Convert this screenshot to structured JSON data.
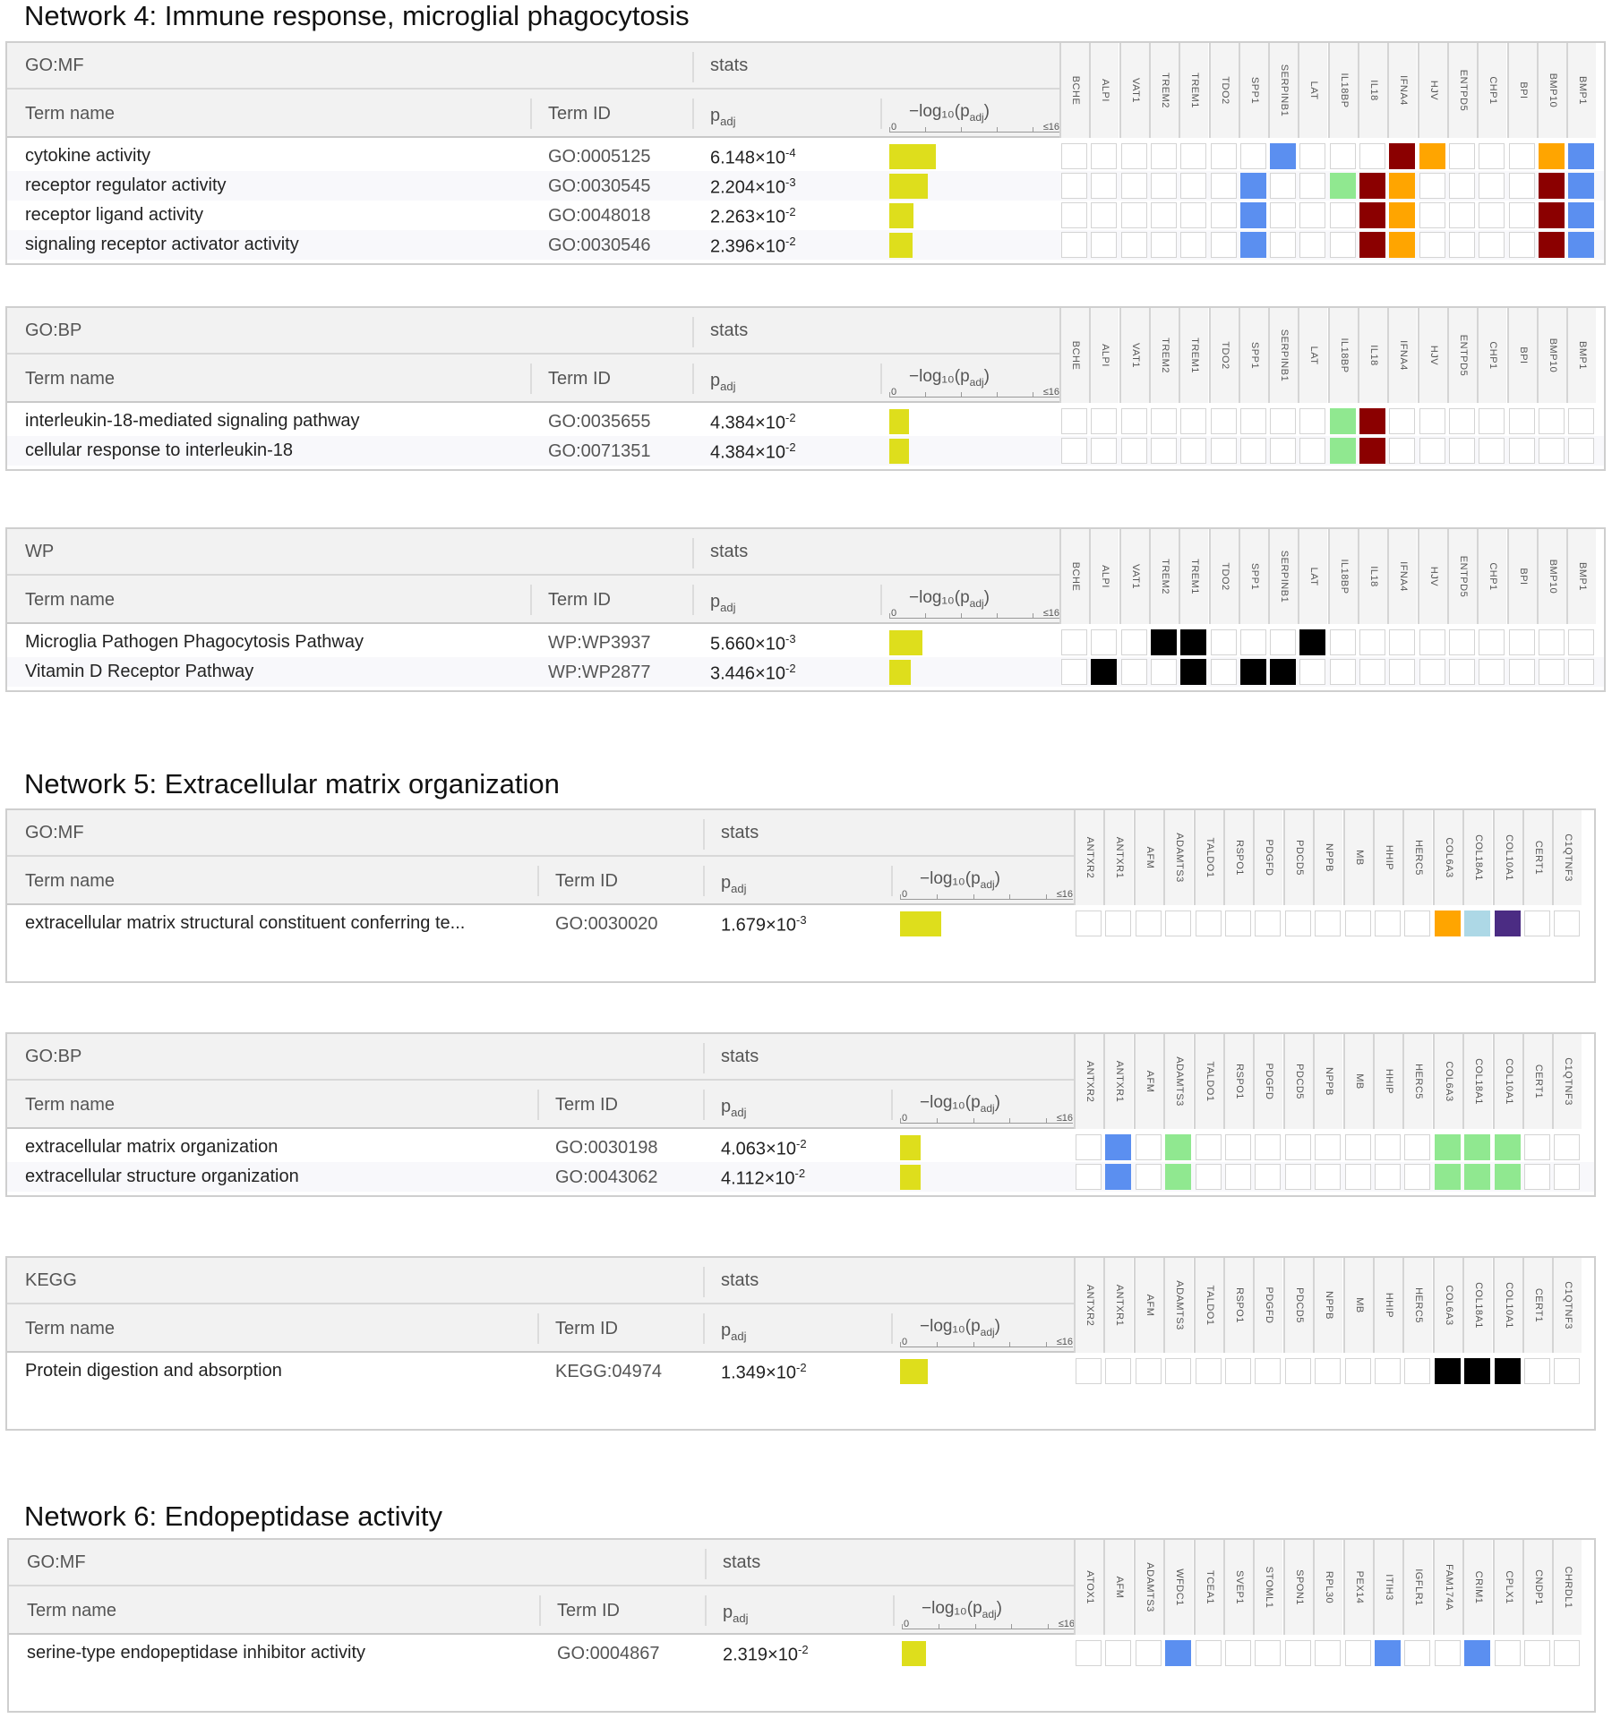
{
  "colors": {
    "pbar": "#dede1c",
    "palette": {
      "B": "#5b8ff0",
      "G": "#90e890",
      "R": "#8b0000",
      "O": "#ffa500",
      "K": "#000000",
      "L": "#add8e6",
      "P": "#4b2c83"
    }
  },
  "axis_label": "−log₁₀(p",
  "axis_sub": "adj",
  "axis_close": ")",
  "axis_zero": "0",
  "axis_max": "≤16",
  "col_term_name": "Term name",
  "col_term_id": "Term ID",
  "col_padj": "p",
  "col_padj_sub": "adj",
  "stats_label": "stats",
  "networks": [
    {
      "title": "Network 4: Immune response, microglial phagocytosis",
      "genes": [
        "BCHE",
        "ALPI",
        "VAT1",
        "TREM2",
        "TREM1",
        "TDO2",
        "SPP1",
        "SERPINB1",
        "LAT",
        "IL18BP",
        "IL18",
        "IFNA4",
        "HJV",
        "ENTPD5",
        "CHP1",
        "BPI",
        "BMP10",
        "BMP1"
      ],
      "panels": [
        {
          "source": "GO:MF",
          "rows": [
            {
              "name": "cytokine activity",
              "id": "GO:0005125",
              "p_base": "6.148×10",
              "p_exp": "-4",
              "neglog": 3.21,
              "cells": ".......B...RO...OB"
            },
            {
              "name": "receptor regulator activity",
              "id": "GO:0030545",
              "p_base": "2.204×10",
              "p_exp": "-3",
              "neglog": 2.66,
              "cells": "......B..GRO....RB"
            },
            {
              "name": "receptor ligand activity",
              "id": "GO:0048018",
              "p_base": "2.263×10",
              "p_exp": "-2",
              "neglog": 1.65,
              "cells": "......B...RO....RB"
            },
            {
              "name": "signaling receptor activator activity",
              "id": "GO:0030546",
              "p_base": "2.396×10",
              "p_exp": "-2",
              "neglog": 1.62,
              "cells": "......B...RO....RB"
            }
          ]
        },
        {
          "source": "GO:BP",
          "rows": [
            {
              "name": "interleukin-18-mediated signaling pathway",
              "id": "GO:0035655",
              "p_base": "4.384×10",
              "p_exp": "-2",
              "neglog": 1.36,
              "cells": ".........GR......."
            },
            {
              "name": "cellular response to interleukin-18",
              "id": "GO:0071351",
              "p_base": "4.384×10",
              "p_exp": "-2",
              "neglog": 1.36,
              "cells": ".........GR......."
            }
          ]
        },
        {
          "source": "WP",
          "rows": [
            {
              "name": "Microglia Pathogen Phagocytosis Pathway",
              "id": "WP:WP3937",
              "p_base": "5.660×10",
              "p_exp": "-3",
              "neglog": 2.25,
              "cells": "...KK...K........."
            },
            {
              "name": "Vitamin D Receptor Pathway",
              "id": "WP:WP2877",
              "p_base": "3.446×10",
              "p_exp": "-2",
              "neglog": 1.46,
              "cells": ".K..K.KK.........."
            }
          ]
        }
      ]
    },
    {
      "title": "Network 5: Extracellular matrix organization",
      "genes": [
        "ANTXR2",
        "ANTXR1",
        "AFM",
        "ADAMTS3",
        "TALDO1",
        "RSPO1",
        "PDGFD",
        "PDCD5",
        "NPPB",
        "MB",
        "HHIP",
        "HERC5",
        "COL6A3",
        "COL18A1",
        "COL10A1",
        "CERT1",
        "C1QTNF3"
      ],
      "panels": [
        {
          "source": "GO:MF",
          "rows": [
            {
              "name": "extracellular matrix structural constituent conferring te...",
              "id": "GO:0030020",
              "p_base": "1.679×10",
              "p_exp": "-3",
              "neglog": 2.77,
              "cells": "............OLP.."
            }
          ]
        },
        {
          "source": "GO:BP",
          "rows": [
            {
              "name": "extracellular matrix organization",
              "id": "GO:0030198",
              "p_base": "4.063×10",
              "p_exp": "-2",
              "neglog": 1.39,
              "cells": ".B.G........GGG.."
            },
            {
              "name": "extracellular structure organization",
              "id": "GO:0043062",
              "p_base": "4.112×10",
              "p_exp": "-2",
              "neglog": 1.39,
              "cells": ".B.G........GGG.."
            }
          ]
        },
        {
          "source": "KEGG",
          "rows": [
            {
              "name": "Protein digestion and absorption",
              "id": "KEGG:04974",
              "p_base": "1.349×10",
              "p_exp": "-2",
              "neglog": 1.87,
              "cells": "............KKK.."
            }
          ]
        }
      ]
    },
    {
      "title": "Network 6: Endopeptidase activity",
      "genes": [
        "ATOX1",
        "AFM",
        "ADAMTS3",
        "WFDC1",
        "TCEA1",
        "SVEP1",
        "STOML1",
        "SPON1",
        "RPL30",
        "PEX14",
        "ITIH3",
        "IGFLR1",
        "FAM174A",
        "CRIM1",
        "CPLX1",
        "CNDP1",
        "CHRDL1"
      ],
      "panels": [
        {
          "source": "GO:MF",
          "rows": [
            {
              "name": "serine-type endopeptidase inhibitor activity",
              "id": "GO:0004867",
              "p_base": "2.319×10",
              "p_exp": "-2",
              "neglog": 1.63,
              "cells": "...B......B..B..."
            }
          ]
        }
      ]
    }
  ]
}
